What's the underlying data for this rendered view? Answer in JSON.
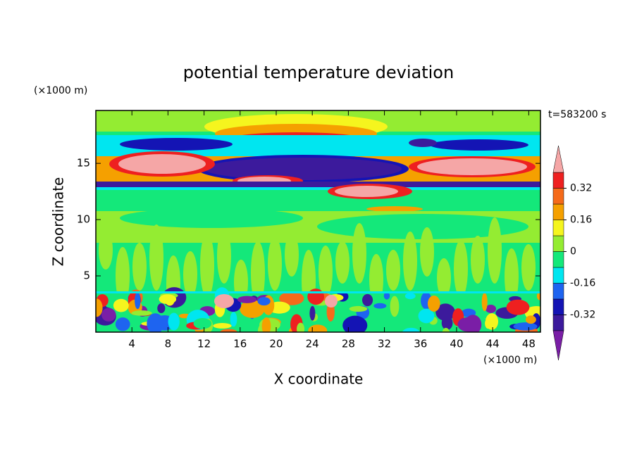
{
  "chart_data": {
    "type": "contour",
    "title": "potential temperature deviation",
    "x_label": "X coordinate",
    "y_label": "Z coordinate",
    "x_unit": "(×1000 m)",
    "y_unit": "(×1000 m)",
    "time_label": "t=583200 s",
    "xlim": [
      0,
      49.3
    ],
    "xticks": [
      4,
      8,
      12,
      16,
      20,
      24,
      28,
      32,
      36,
      40,
      44,
      48
    ],
    "ylim": [
      0,
      19.7
    ],
    "yticks": [
      5,
      10,
      15
    ],
    "levels": [
      -0.4,
      -0.32,
      -0.24,
      -0.16,
      -0.08,
      0,
      0.08,
      0.16,
      0.24,
      0.32,
      0.4
    ],
    "colors": [
      "#7a1ea6",
      "#3c1a9c",
      "#1414b4",
      "#1e64f0",
      "#00e6f0",
      "#14e87a",
      "#94ec32",
      "#f5f51e",
      "#f5a000",
      "#f56a1a",
      "#ee2020",
      "#f5a6a6"
    ],
    "colorbar_ticks": [
      0.32,
      0.16,
      0,
      -0.16,
      -0.32
    ]
  }
}
